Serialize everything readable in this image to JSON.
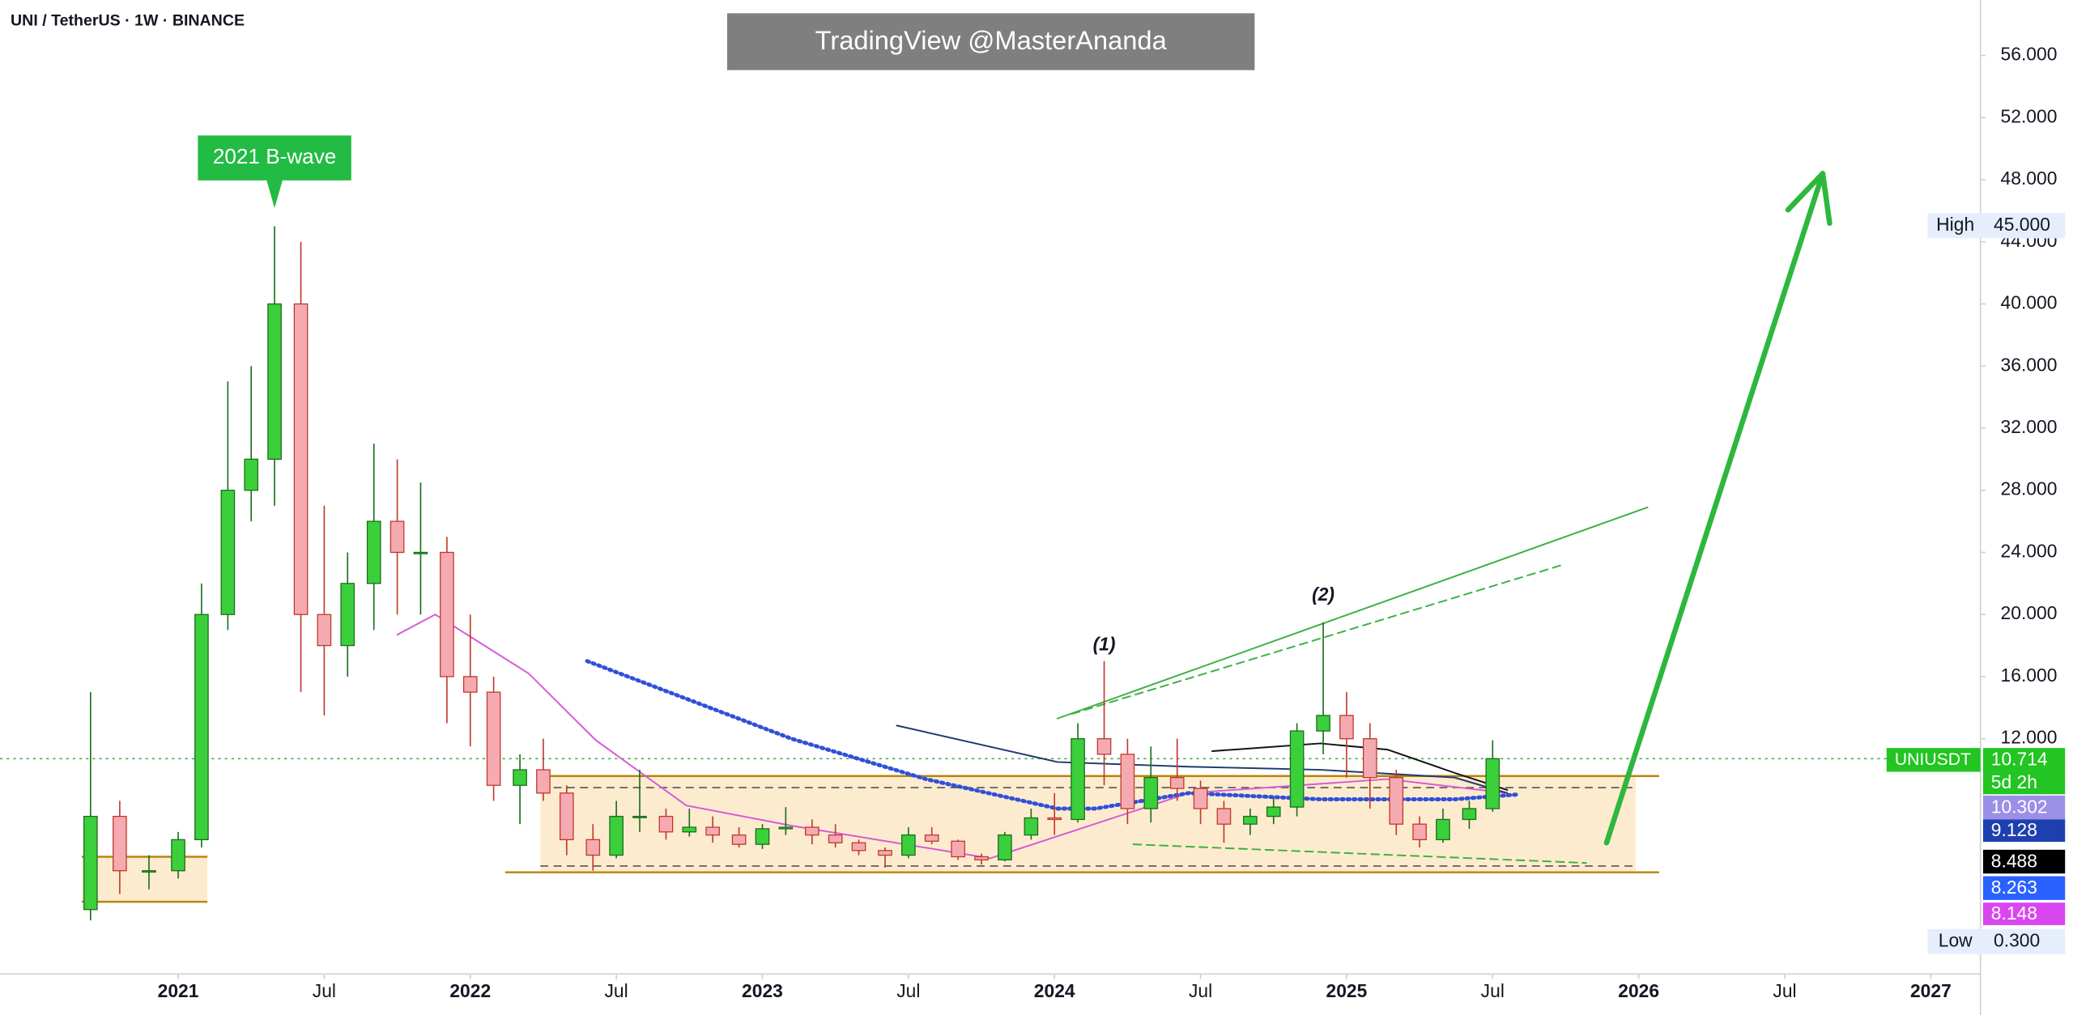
{
  "chart_data": {
    "type": "candlestick",
    "title": "UNI / TetherUS · 1W · BINANCE",
    "watermark": "TradingView @MasterAnanda",
    "x": [
      2020.7,
      2020.8,
      2020.9,
      2021.0,
      2021.08,
      2021.17,
      2021.25,
      2021.33,
      2021.42,
      2021.5,
      2021.58,
      2021.67,
      2021.75,
      2021.83,
      2021.92,
      2022.0,
      2022.08,
      2022.17,
      2022.25,
      2022.33,
      2022.42,
      2022.5,
      2022.58,
      2022.67,
      2022.75,
      2022.83,
      2022.92,
      2023.0,
      2023.08,
      2023.17,
      2023.25,
      2023.33,
      2023.42,
      2023.5,
      2023.58,
      2023.67,
      2023.75,
      2023.83,
      2023.92,
      2024.0,
      2024.08,
      2024.17,
      2024.25,
      2024.33,
      2024.42,
      2024.5,
      2024.58,
      2024.67,
      2024.75,
      2024.83,
      2024.92,
      2025.0,
      2025.08,
      2025.17,
      2025.25,
      2025.33,
      2025.42,
      2025.5
    ],
    "open": [
      1,
      7,
      3.5,
      3.5,
      5.5,
      20,
      28,
      30,
      40,
      20,
      18,
      22,
      26,
      24,
      24,
      16,
      15,
      9,
      10,
      8.5,
      5.5,
      4.5,
      7,
      7,
      6,
      6.3,
      5.8,
      5.2,
      6.2,
      6.3,
      5.8,
      5.3,
      4.8,
      4.5,
      5.8,
      5.4,
      4.4,
      4.2,
      5.8,
      6.9,
      6.8,
      12,
      11,
      7.5,
      9.5,
      8.8,
      7.5,
      6.5,
      7,
      7.6,
      12.5,
      13.5,
      12,
      9.5,
      6.5,
      5.5,
      6.8,
      7.5
    ],
    "high": [
      15,
      8,
      4.5,
      6,
      22,
      35,
      36,
      45,
      44,
      27,
      24,
      31,
      30,
      28.5,
      25,
      20,
      16,
      11,
      12,
      9,
      6.5,
      8,
      10,
      7.5,
      7.5,
      7,
      6.3,
      6.5,
      7.6,
      6.8,
      6.5,
      5.5,
      5,
      6.3,
      6.3,
      5.5,
      4.6,
      6,
      7.5,
      8.5,
      13,
      17,
      12,
      11.5,
      12,
      9.3,
      8,
      7.5,
      8.2,
      13,
      19.5,
      15,
      13,
      10,
      7,
      7.5,
      8,
      11.9
    ],
    "low": [
      0.3,
      2,
      2.3,
      3,
      5,
      19,
      26,
      27,
      15,
      13.5,
      16,
      19,
      20,
      20,
      13,
      11.5,
      8,
      6.5,
      8,
      4.5,
      3.5,
      4.3,
      6,
      5.5,
      5.7,
      5.3,
      5,
      4.9,
      5.8,
      5.2,
      5,
      4.5,
      3.7,
      4.3,
      5.2,
      4.2,
      3.9,
      4.1,
      5.5,
      5.8,
      6.6,
      9,
      6.5,
      6.6,
      8,
      6.5,
      5.3,
      5.8,
      6.5,
      7,
      11,
      9.5,
      7.5,
      5.8,
      5,
      5.3,
      6.2,
      7.3
    ],
    "close": [
      7,
      3.5,
      3.5,
      5.5,
      20,
      28,
      30,
      40,
      20,
      18,
      22,
      26,
      24,
      24,
      16,
      15,
      9,
      10,
      8.5,
      5.5,
      4.5,
      7,
      7,
      6,
      6.3,
      5.8,
      5.2,
      6.2,
      6.3,
      5.8,
      5.3,
      4.8,
      4.5,
      5.8,
      5.4,
      4.4,
      4.2,
      5.8,
      6.9,
      6.8,
      12,
      11,
      7.5,
      9.5,
      8.8,
      7.5,
      6.5,
      7,
      7.6,
      12.5,
      13.5,
      12,
      9.5,
      6.5,
      5.5,
      6.8,
      7.5,
      10.714
    ],
    "up_color": "#3ccf3c",
    "down_color": "#f5aab2",
    "xlim": [
      2020.39,
      2027.17
    ],
    "ylim": [
      -3.15,
      59.57
    ],
    "xticks": [
      {
        "value": 2021,
        "label": "2021"
      },
      {
        "value": 2021.5,
        "label": "Jul"
      },
      {
        "value": 2022,
        "label": "2022"
      },
      {
        "value": 2022.5,
        "label": "Jul"
      },
      {
        "value": 2023,
        "label": "2023"
      },
      {
        "value": 2023.5,
        "label": "Jul"
      },
      {
        "value": 2024,
        "label": "2024"
      },
      {
        "value": 2024.5,
        "label": "Jul"
      },
      {
        "value": 2025,
        "label": "2025"
      },
      {
        "value": 2025.5,
        "label": "Jul"
      },
      {
        "value": 2026,
        "label": "2026"
      },
      {
        "value": 2026.5,
        "label": "Jul"
      },
      {
        "value": 2027,
        "label": "2027"
      }
    ],
    "yticks": [
      {
        "value": 12,
        "label": "12.000"
      },
      {
        "value": 16,
        "label": "16.000"
      },
      {
        "value": 20,
        "label": "20.000"
      },
      {
        "value": 24,
        "label": "24.000"
      },
      {
        "value": 28,
        "label": "28.000"
      },
      {
        "value": 32,
        "label": "32.000"
      },
      {
        "value": 36,
        "label": "36.000"
      },
      {
        "value": 40,
        "label": "40.000"
      },
      {
        "value": 44,
        "label": "44.000"
      },
      {
        "value": 48,
        "label": "48.000"
      },
      {
        "value": 52,
        "label": "52.000"
      },
      {
        "value": 56,
        "label": "56.000"
      }
    ],
    "zones": [
      {
        "x": [
          2022.24,
          2025.99
        ],
        "y": [
          3.4,
          9.6
        ],
        "color": "#fdebcf"
      },
      {
        "x": [
          2020.67,
          2021.1
        ],
        "y": [
          1.5,
          4.4
        ],
        "color": "#fdebcf"
      }
    ],
    "levels": [
      {
        "value": 9.6,
        "x": [
          2022.24,
          2026.07
        ],
        "color": "#b8860b",
        "dash": "solid"
      },
      {
        "value": 3.4,
        "x": [
          2022.12,
          2026.07
        ],
        "color": "#b8860b",
        "dash": "solid"
      },
      {
        "value": 8.85,
        "x": [
          2022.24,
          2025.99
        ],
        "color": "#555555",
        "dash": "dash"
      },
      {
        "value": 3.8,
        "x": [
          2022.24,
          2025.99
        ],
        "color": "#555555",
        "dash": "dash"
      },
      {
        "value": 4.4,
        "x": [
          2020.67,
          2021.1
        ],
        "color": "#b8860b",
        "dash": "solid"
      },
      {
        "value": 1.5,
        "x": [
          2020.67,
          2021.1
        ],
        "color": "#b8860b",
        "dash": "solid"
      },
      {
        "value": 10.714,
        "x": [
          2020.39,
          2027.17
        ],
        "color": "#4caf50",
        "dash": "dot"
      }
    ],
    "lines": [
      {
        "color": "#d65ad6",
        "dash": "solid",
        "x": [
          2021.75,
          2021.88,
          2022.2,
          2022.43,
          2022.74,
          2023.1,
          2023.78,
          2024.46,
          2025.14,
          2025.55
        ],
        "values": [
          18.7,
          20,
          16.2,
          11.9,
          7.7,
          6.4,
          4.3,
          8.5,
          9.4,
          8.5
        ]
      },
      {
        "color": "#3050d8",
        "dash": "dot",
        "x": [
          2022.4,
          2023.1,
          2023.56,
          2024.01,
          2024.14,
          2024.46,
          2024.91,
          2025.37,
          2025.58
        ],
        "values": [
          17,
          12,
          9.4,
          7.5,
          7.5,
          8.5,
          8.1,
          8.1,
          8.4
        ]
      },
      {
        "color": "#1e3a6e",
        "dash": "solid",
        "x": [
          2023.46,
          2024.01,
          2024.46,
          2024.91,
          2025.37,
          2025.55
        ],
        "values": [
          12.85,
          10.5,
          10.2,
          10,
          9.5,
          8.5
        ]
      },
      {
        "color": "#111111",
        "dash": "solid",
        "x": [
          2024.54,
          2024.91,
          2025.14,
          2025.37,
          2025.55
        ],
        "values": [
          11.2,
          11.7,
          11.3,
          9.8,
          8.7
        ]
      },
      {
        "color": "#3cb043",
        "dash": "solid",
        "x": [
          2024.01,
          2026.03
        ],
        "values": [
          13.3,
          26.9
        ]
      },
      {
        "color": "#3cb043",
        "dash": "dash",
        "x": [
          2024.06,
          2025.74
        ],
        "values": [
          13.6,
          23.2
        ]
      },
      {
        "color": "#3cb043",
        "dash": "dash",
        "x": [
          2024.27,
          2025.82
        ],
        "values": [
          5.2,
          4.0
        ]
      }
    ],
    "arrow": {
      "color": "#2db83d",
      "x": [
        2025.89,
        2026.63
      ],
      "y": [
        5.3,
        48.4
      ]
    },
    "annotations": [
      {
        "text": "(1)",
        "x": 2024.17,
        "y": 18
      },
      {
        "text": "(2)",
        "x": 2024.92,
        "y": 21.2
      }
    ],
    "callout": {
      "text": "2021 B-wave",
      "x": 2021.33,
      "y": 49.4,
      "color": "#22bb44"
    },
    "symbol_label": "UNIUSDT",
    "price_labels": [
      {
        "label": "10.714",
        "color": "#22c522"
      },
      {
        "label": "5d 2h",
        "color": "#22c522"
      },
      {
        "label": "10.302",
        "color": "#9b8fe8"
      },
      {
        "label": "9.128",
        "color": "#1e40af"
      },
      {
        "label": "8.488",
        "color": "#000000"
      },
      {
        "label": "8.263",
        "color": "#2962ff"
      },
      {
        "label": "8.148",
        "color": "#d946ef"
      }
    ],
    "high_label": {
      "name": "High",
      "label": "45.000"
    },
    "low_label": {
      "name": "Low",
      "label": "0.300"
    }
  }
}
